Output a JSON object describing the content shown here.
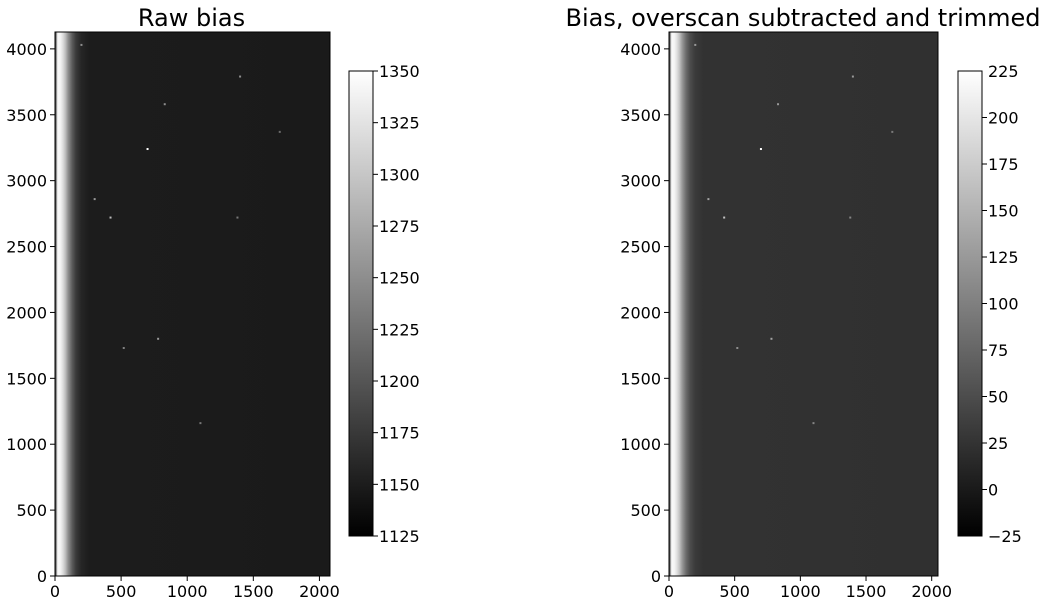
{
  "chart_data": [
    {
      "type": "heatmap",
      "title": "Raw bias",
      "xlabel": "",
      "ylabel": "",
      "xlim": [
        0,
        2080
      ],
      "ylim": [
        0,
        4128
      ],
      "xticks": [
        0,
        500,
        1000,
        1500,
        2000
      ],
      "yticks": [
        0,
        500,
        1000,
        1500,
        2000,
        2500,
        3000,
        3500,
        4000
      ],
      "colormap": "gray",
      "colorbar": {
        "vmin": 1125,
        "vmax": 1350,
        "ticks": [
          1125,
          1150,
          1175,
          1200,
          1225,
          1250,
          1275,
          1300,
          1325,
          1350
        ]
      },
      "image_profile": {
        "description_free_values": true,
        "x": [
          0,
          20,
          40,
          60,
          80,
          100,
          130,
          160,
          200,
          260,
          2080
        ],
        "level": [
          1135,
          1345,
          1340,
          1320,
          1290,
          1250,
          1205,
          1175,
          1158,
          1150,
          1148
        ]
      },
      "hot_pixels": [
        {
          "x": 700,
          "y": 3240,
          "v": 1350
        },
        {
          "x": 420,
          "y": 2720,
          "v": 1290
        },
        {
          "x": 300,
          "y": 2860,
          "v": 1260
        },
        {
          "x": 830,
          "y": 3580,
          "v": 1250
        },
        {
          "x": 1400,
          "y": 3790,
          "v": 1250
        },
        {
          "x": 780,
          "y": 1800,
          "v": 1260
        },
        {
          "x": 520,
          "y": 1730,
          "v": 1240
        },
        {
          "x": 1380,
          "y": 2720,
          "v": 1230
        },
        {
          "x": 1100,
          "y": 1160,
          "v": 1230
        },
        {
          "x": 200,
          "y": 4030,
          "v": 1250
        },
        {
          "x": 1700,
          "y": 3370,
          "v": 1220
        }
      ]
    },
    {
      "type": "heatmap",
      "title": "Bias, overscan subtracted and trimmed",
      "xlabel": "",
      "ylabel": "",
      "xlim": [
        0,
        2048
      ],
      "ylim": [
        0,
        4128
      ],
      "xticks": [
        0,
        500,
        1000,
        1500,
        2000
      ],
      "yticks": [
        0,
        500,
        1000,
        1500,
        2000,
        2500,
        3000,
        3500,
        4000
      ],
      "colormap": "gray",
      "colorbar": {
        "vmin": -25,
        "vmax": 225,
        "ticks": [
          0,
          25,
          50,
          75,
          100,
          125,
          150,
          175,
          200
        ],
        "extra_tick_labels": [
          {
            "value": -25,
            "label": "−25"
          },
          {
            "value": 225,
            "label": "225"
          }
        ]
      },
      "image_profile": {
        "x": [
          0,
          20,
          40,
          60,
          80,
          100,
          130,
          160,
          200,
          260,
          2048
        ],
        "level": [
          -10,
          220,
          215,
          195,
          165,
          125,
          80,
          50,
          32,
          24,
          22
        ]
      },
      "hot_pixels": [
        {
          "x": 700,
          "y": 3240,
          "v": 225
        },
        {
          "x": 420,
          "y": 2720,
          "v": 165
        },
        {
          "x": 300,
          "y": 2860,
          "v": 135
        },
        {
          "x": 830,
          "y": 3580,
          "v": 125
        },
        {
          "x": 1400,
          "y": 3790,
          "v": 125
        },
        {
          "x": 780,
          "y": 1800,
          "v": 135
        },
        {
          "x": 520,
          "y": 1730,
          "v": 115
        },
        {
          "x": 1380,
          "y": 2720,
          "v": 105
        },
        {
          "x": 1100,
          "y": 1160,
          "v": 105
        },
        {
          "x": 200,
          "y": 4030,
          "v": 125
        },
        {
          "x": 1700,
          "y": 3370,
          "v": 95
        }
      ]
    }
  ]
}
